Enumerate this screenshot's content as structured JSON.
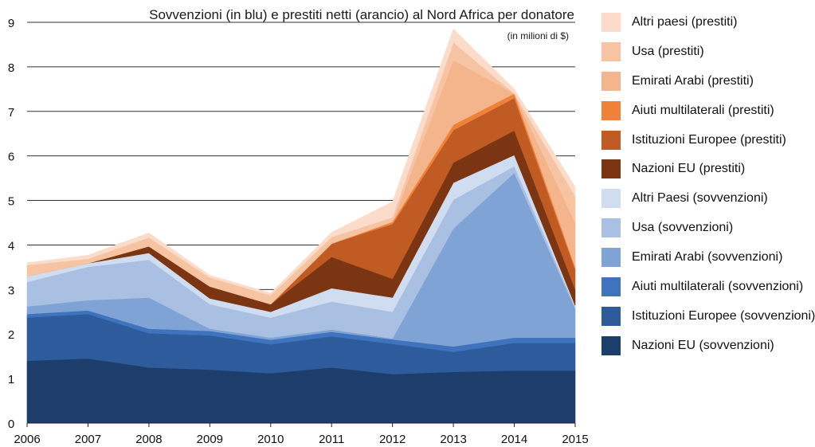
{
  "chart_data": {
    "type": "area",
    "stacked": true,
    "title": "Sovvenzioni (in blu) e prestiti netti (arancio) al Nord Africa per donatore",
    "subtitle": "(in milioni di $)",
    "xlabel": "",
    "ylabel": "",
    "x": [
      "2006",
      "2007",
      "2008",
      "2009",
      "2010",
      "2011",
      "2012",
      "2013",
      "2014",
      "2015"
    ],
    "ylim": [
      0,
      9
    ],
    "yticks": [
      "0",
      "1",
      "2",
      "3",
      "4",
      "5",
      "6",
      "7",
      "8",
      "9"
    ],
    "grid": true,
    "legend_position": "right",
    "series": [
      {
        "name": "Nazioni EU (sovvenzioni)",
        "color": "#1d3d6b",
        "values": [
          1.4,
          1.45,
          1.25,
          1.2,
          1.12,
          1.25,
          1.1,
          1.15,
          1.18,
          1.18
        ]
      },
      {
        "name": "Istituzioni Europee (sovvenzioni)",
        "color": "#2d5b9b",
        "values": [
          0.97,
          1.0,
          0.77,
          0.77,
          0.65,
          0.7,
          0.68,
          0.45,
          0.62,
          0.62
        ]
      },
      {
        "name": "Aiuti multilaterali (sovvenzioni)",
        "color": "#3f73bd",
        "values": [
          0.08,
          0.08,
          0.1,
          0.1,
          0.1,
          0.1,
          0.1,
          0.12,
          0.12,
          0.12
        ]
      },
      {
        "name": "Emirati Arabi (sovvenzioni)",
        "color": "#7fa3d5",
        "values": [
          0.17,
          0.23,
          0.7,
          0.05,
          0.05,
          0.05,
          0.02,
          2.65,
          3.7,
          0.65
        ]
      },
      {
        "name": "Usa (sovvenzioni)",
        "color": "#a9c0e3",
        "values": [
          0.55,
          0.75,
          0.85,
          0.55,
          0.45,
          0.63,
          0.6,
          0.65,
          0.15,
          0.05
        ]
      },
      {
        "name": "Altri Paesi (sovvenzioni)",
        "color": "#d0ddf0",
        "values": [
          0.13,
          0.08,
          0.15,
          0.13,
          0.13,
          0.3,
          0.32,
          0.38,
          0.25,
          0.02
        ]
      },
      {
        "name": "Nazioni EU (prestiti)",
        "color": "#7b3513",
        "values": [
          0.0,
          0.0,
          0.15,
          0.27,
          0.17,
          0.7,
          0.42,
          0.45,
          0.55,
          0.36
        ]
      },
      {
        "name": "Istituzioni Europee (prestiti)",
        "color": "#c05b24",
        "values": [
          0.0,
          0.0,
          0.0,
          0.0,
          0.0,
          0.3,
          1.23,
          0.73,
          0.73,
          0.45
        ]
      },
      {
        "name": "Aiuti multilaterali (prestiti)",
        "color": "#ef813b",
        "values": [
          0.0,
          0.0,
          0.0,
          0.0,
          0.0,
          0.0,
          0.05,
          0.12,
          0.1,
          0.05
        ]
      },
      {
        "name": "Emirati Arabi (prestiti)",
        "color": "#f4b48c",
        "values": [
          0.0,
          0.0,
          0.0,
          0.0,
          0.0,
          0.0,
          0.0,
          1.45,
          0.0,
          1.0
        ]
      },
      {
        "name": "Usa (prestiti)",
        "color": "#f7c4a3",
        "values": [
          0.25,
          0.1,
          0.2,
          0.2,
          0.2,
          0.15,
          0.1,
          0.4,
          0.0,
          0.6
        ]
      },
      {
        "name": "Altri paesi (prestiti)",
        "color": "#fbdccb",
        "values": [
          0.05,
          0.08,
          0.1,
          0.05,
          0.05,
          0.1,
          0.35,
          0.3,
          0.1,
          0.2
        ]
      }
    ]
  }
}
